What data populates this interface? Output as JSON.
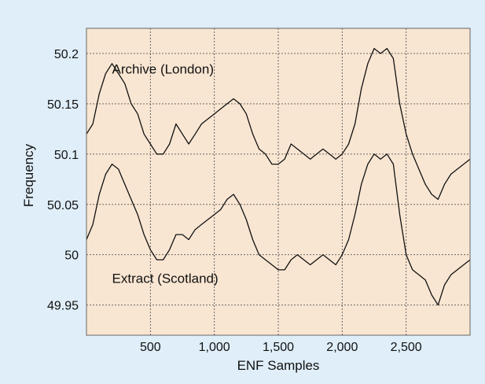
{
  "chart_data": {
    "type": "line",
    "title": "",
    "xlabel": "ENF Samples",
    "ylabel": "Frequency",
    "xlim": [
      0,
      3000
    ],
    "ylim": [
      49.92,
      50.225
    ],
    "x_ticks": [
      500,
      1000,
      1500,
      2000,
      2500
    ],
    "x_tick_labels": [
      "500",
      "1,000",
      "1,500",
      "2,000",
      "2,500"
    ],
    "y_ticks": [
      49.95,
      50,
      50.05,
      50.1,
      50.15,
      50.2
    ],
    "y_tick_labels": [
      "49.95",
      "50",
      "50.05",
      "50.1",
      "50.15",
      "50.2"
    ],
    "grid": true,
    "plot_background": "#f9e6d2",
    "figure_background": "#dfeef8",
    "line_color": "#111111",
    "series": [
      {
        "name": "Archive (London)",
        "x": [
          0,
          50,
          100,
          150,
          200,
          250,
          300,
          350,
          400,
          450,
          500,
          550,
          600,
          650,
          700,
          750,
          800,
          850,
          900,
          950,
          1000,
          1050,
          1100,
          1150,
          1200,
          1250,
          1300,
          1350,
          1400,
          1450,
          1500,
          1550,
          1600,
          1650,
          1700,
          1750,
          1800,
          1850,
          1900,
          1950,
          2000,
          2050,
          2100,
          2150,
          2200,
          2250,
          2300,
          2350,
          2400,
          2450,
          2500,
          2550,
          2600,
          2650,
          2700,
          2750,
          2800,
          2850,
          2900,
          2950,
          3000
        ],
        "values": [
          50.12,
          50.13,
          50.16,
          50.18,
          50.19,
          50.18,
          50.17,
          50.15,
          50.14,
          50.12,
          50.11,
          50.1,
          50.1,
          50.11,
          50.13,
          50.12,
          50.11,
          50.12,
          50.13,
          50.135,
          50.14,
          50.145,
          50.15,
          50.155,
          50.15,
          50.14,
          50.12,
          50.105,
          50.1,
          50.09,
          50.09,
          50.095,
          50.11,
          50.105,
          50.1,
          50.095,
          50.1,
          50.105,
          50.1,
          50.095,
          50.1,
          50.11,
          50.13,
          50.165,
          50.19,
          50.205,
          50.2,
          50.205,
          50.195,
          50.15,
          50.12,
          50.1,
          50.085,
          50.07,
          50.06,
          50.055,
          50.07,
          50.08,
          50.085,
          50.09,
          50.095
        ]
      },
      {
        "name": "Extract (Scotland)",
        "x": [
          0,
          50,
          100,
          150,
          200,
          250,
          300,
          350,
          400,
          450,
          500,
          550,
          600,
          650,
          700,
          750,
          800,
          850,
          900,
          950,
          1000,
          1050,
          1100,
          1150,
          1200,
          1250,
          1300,
          1350,
          1400,
          1450,
          1500,
          1550,
          1600,
          1650,
          1700,
          1750,
          1800,
          1850,
          1900,
          1950,
          2000,
          2050,
          2100,
          2150,
          2200,
          2250,
          2300,
          2350,
          2400,
          2450,
          2500,
          2550,
          2600,
          2650,
          2700,
          2750,
          2800,
          2850,
          2900,
          2950,
          3000
        ],
        "values": [
          50.015,
          50.03,
          50.06,
          50.08,
          50.09,
          50.085,
          50.07,
          50.055,
          50.04,
          50.02,
          50.005,
          49.995,
          49.995,
          50.005,
          50.02,
          50.02,
          50.015,
          50.025,
          50.03,
          50.035,
          50.04,
          50.045,
          50.055,
          50.06,
          50.05,
          50.035,
          50.015,
          50.0,
          49.995,
          49.99,
          49.985,
          49.985,
          49.995,
          50.0,
          49.995,
          49.99,
          49.995,
          50.0,
          49.995,
          49.99,
          50.0,
          50.015,
          50.04,
          50.07,
          50.09,
          50.1,
          50.095,
          50.1,
          50.09,
          50.04,
          50.0,
          49.985,
          49.98,
          49.975,
          49.96,
          49.95,
          49.97,
          49.98,
          49.985,
          49.99,
          49.995
        ]
      }
    ],
    "annotations": [
      {
        "text": "Archive (London)",
        "x": 200,
        "y": 50.18
      },
      {
        "text": "Extract (Scotland)",
        "x": 200,
        "y": 49.972
      }
    ]
  }
}
